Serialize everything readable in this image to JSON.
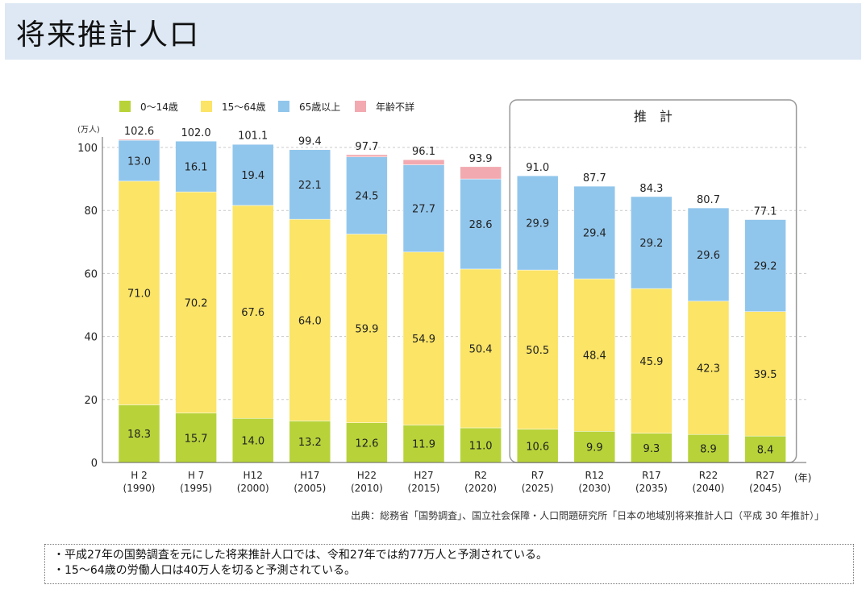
{
  "page": {
    "title": "将来推計人口"
  },
  "chart_data": {
    "type": "bar",
    "stacked": true,
    "categories_line1": [
      "H 2",
      "H 7",
      "H12",
      "H17",
      "H22",
      "H27",
      "R2",
      "R7",
      "R12",
      "R17",
      "R22",
      "R27"
    ],
    "categories_line2": [
      "(1990)",
      "(1995)",
      "(2000)",
      "(2005)",
      "(2010)",
      "(2015)",
      "(2020)",
      "(2025)",
      "(2030)",
      "(2035)",
      "(2040)",
      "(2045)"
    ],
    "series": [
      {
        "name": "0〜14歳",
        "color": "#b7d339",
        "values": [
          18.3,
          15.7,
          14.0,
          13.2,
          12.6,
          11.9,
          11.0,
          10.6,
          9.9,
          9.3,
          8.9,
          8.4
        ]
      },
      {
        "name": "15〜64歳",
        "color": "#fbe466",
        "values": [
          71.0,
          70.2,
          67.6,
          64.0,
          59.9,
          54.9,
          50.4,
          50.5,
          48.4,
          45.9,
          42.3,
          39.5
        ]
      },
      {
        "name": "65歳以上",
        "color": "#91c6ec",
        "values": [
          13.0,
          16.1,
          19.4,
          22.1,
          24.5,
          27.7,
          28.6,
          29.9,
          29.4,
          29.2,
          29.6,
          29.2
        ]
      },
      {
        "name": "年齢不詳",
        "color": "#f3a9b0",
        "values": [
          0.3,
          0,
          0.1,
          0.1,
          0.7,
          1.6,
          3.9,
          0,
          0,
          0,
          0,
          0
        ]
      }
    ],
    "totals": [
      "102.6",
      "102.0",
      "101.1",
      "99.4",
      "97.7",
      "96.1",
      "93.9",
      "91.0",
      "87.7",
      "84.3",
      "80.7",
      "77.1"
    ],
    "segment_labels": [
      [
        "18.3",
        "15.7",
        "14.0",
        "13.2",
        "12.6",
        "11.9",
        "11.0",
        "10.6",
        "9.9",
        "9.3",
        "8.9",
        "8.4"
      ],
      [
        "71.0",
        "70.2",
        "67.6",
        "64.0",
        "59.9",
        "54.9",
        "50.4",
        "50.5",
        "48.4",
        "45.9",
        "42.3",
        "39.5"
      ],
      [
        "13.0",
        "16.1",
        "19.4",
        "22.1",
        "24.5",
        "27.7",
        "28.6",
        "29.9",
        "29.4",
        "29.2",
        "29.6",
        "29.2"
      ]
    ],
    "ylim": [
      0,
      100
    ],
    "yticks": [
      "0",
      "20",
      "40",
      "60",
      "80",
      "100"
    ],
    "yunit": "(万人)",
    "xunit": "(年)",
    "projection_label": "推　計",
    "projection_start_index": 7,
    "grid": true,
    "legend_position": "top"
  },
  "source": "出典：総務省「国勢調査」、国立社会保障・人口問題研究所「日本の地域別将来推計人口（平成 30 年推計）」",
  "notes": [
    "・平成27年の国勢調査を元にした将来推計人口では、令和27年では約77万人と予測されている。",
    "・15〜64歳の労働人口は40万人を切ると予測されている。"
  ]
}
